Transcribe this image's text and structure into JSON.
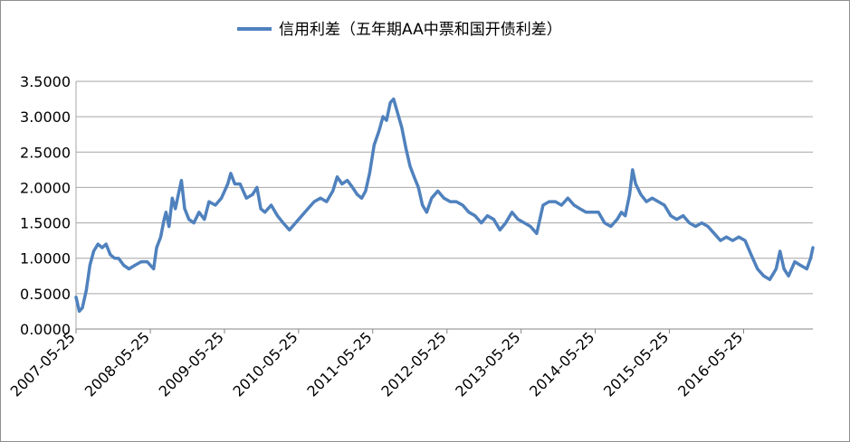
{
  "chart_data": {
    "type": "line",
    "title": "",
    "xlabel": "",
    "ylabel": "",
    "ylim": [
      0,
      3.5
    ],
    "grid": true,
    "legend_position": "top",
    "y_ticks": [
      "0.0000",
      "0.5000",
      "1.0000",
      "1.5000",
      "2.0000",
      "2.5000",
      "3.0000",
      "3.5000"
    ],
    "x_ticks": [
      "2007-05-25",
      "2008-05-25",
      "2009-05-25",
      "2010-05-25",
      "2011-05-25",
      "2012-05-25",
      "2013-05-25",
      "2014-05-25",
      "2015-05-25",
      "2016-05-25"
    ],
    "series": [
      {
        "name": "信用利差（五年期AA中票和国开债利差）",
        "color": "#4f81bd",
        "points": [
          [
            "2007-05-25",
            0.45
          ],
          [
            "2007-06-10",
            0.25
          ],
          [
            "2007-06-25",
            0.3
          ],
          [
            "2007-07-15",
            0.55
          ],
          [
            "2007-08-01",
            0.9
          ],
          [
            "2007-08-20",
            1.1
          ],
          [
            "2007-09-10",
            1.2
          ],
          [
            "2007-10-01",
            1.15
          ],
          [
            "2007-10-20",
            1.2
          ],
          [
            "2007-11-10",
            1.05
          ],
          [
            "2007-12-01",
            1.0
          ],
          [
            "2007-12-20",
            1.0
          ],
          [
            "2008-01-15",
            0.9
          ],
          [
            "2008-02-10",
            0.85
          ],
          [
            "2008-03-10",
            0.9
          ],
          [
            "2008-04-10",
            0.95
          ],
          [
            "2008-05-10",
            0.95
          ],
          [
            "2008-06-10",
            0.85
          ],
          [
            "2008-06-25",
            1.15
          ],
          [
            "2008-07-15",
            1.3
          ],
          [
            "2008-08-01",
            1.55
          ],
          [
            "2008-08-10",
            1.65
          ],
          [
            "2008-08-25",
            1.45
          ],
          [
            "2008-09-10",
            1.85
          ],
          [
            "2008-09-25",
            1.7
          ],
          [
            "2008-10-10",
            1.9
          ],
          [
            "2008-10-25",
            2.1
          ],
          [
            "2008-11-10",
            1.7
          ],
          [
            "2008-12-01",
            1.55
          ],
          [
            "2008-12-25",
            1.5
          ],
          [
            "2009-01-20",
            1.65
          ],
          [
            "2009-02-15",
            1.55
          ],
          [
            "2009-03-10",
            1.8
          ],
          [
            "2009-04-10",
            1.75
          ],
          [
            "2009-05-10",
            1.85
          ],
          [
            "2009-06-10",
            2.05
          ],
          [
            "2009-06-25",
            2.2
          ],
          [
            "2009-07-15",
            2.05
          ],
          [
            "2009-08-10",
            2.05
          ],
          [
            "2009-09-10",
            1.85
          ],
          [
            "2009-10-10",
            1.9
          ],
          [
            "2009-11-01",
            2.0
          ],
          [
            "2009-11-20",
            1.7
          ],
          [
            "2009-12-10",
            1.65
          ],
          [
            "2010-01-10",
            1.75
          ],
          [
            "2010-02-10",
            1.6
          ],
          [
            "2010-03-10",
            1.5
          ],
          [
            "2010-04-10",
            1.4
          ],
          [
            "2010-05-10",
            1.5
          ],
          [
            "2010-06-10",
            1.6
          ],
          [
            "2010-07-10",
            1.7
          ],
          [
            "2010-08-10",
            1.8
          ],
          [
            "2010-09-10",
            1.85
          ],
          [
            "2010-10-10",
            1.8
          ],
          [
            "2010-11-10",
            1.95
          ],
          [
            "2010-12-01",
            2.15
          ],
          [
            "2010-12-25",
            2.05
          ],
          [
            "2011-01-20",
            2.1
          ],
          [
            "2011-02-15",
            2.0
          ],
          [
            "2011-03-10",
            1.9
          ],
          [
            "2011-04-01",
            1.85
          ],
          [
            "2011-04-20",
            1.95
          ],
          [
            "2011-05-10",
            2.2
          ],
          [
            "2011-06-01",
            2.6
          ],
          [
            "2011-06-25",
            2.8
          ],
          [
            "2011-07-15",
            3.0
          ],
          [
            "2011-08-01",
            2.95
          ],
          [
            "2011-08-20",
            3.2
          ],
          [
            "2011-09-05",
            3.25
          ],
          [
            "2011-09-25",
            3.05
          ],
          [
            "2011-10-15",
            2.85
          ],
          [
            "2011-11-05",
            2.55
          ],
          [
            "2011-11-25",
            2.3
          ],
          [
            "2011-12-15",
            2.15
          ],
          [
            "2012-01-05",
            2.0
          ],
          [
            "2012-01-25",
            1.75
          ],
          [
            "2012-02-15",
            1.65
          ],
          [
            "2012-03-10",
            1.85
          ],
          [
            "2012-04-10",
            1.95
          ],
          [
            "2012-05-10",
            1.85
          ],
          [
            "2012-06-10",
            1.8
          ],
          [
            "2012-07-10",
            1.8
          ],
          [
            "2012-08-10",
            1.75
          ],
          [
            "2012-09-10",
            1.65
          ],
          [
            "2012-10-10",
            1.6
          ],
          [
            "2012-11-10",
            1.5
          ],
          [
            "2012-12-10",
            1.6
          ],
          [
            "2013-01-10",
            1.55
          ],
          [
            "2013-02-10",
            1.4
          ],
          [
            "2013-03-10",
            1.5
          ],
          [
            "2013-04-10",
            1.65
          ],
          [
            "2013-05-10",
            1.55
          ],
          [
            "2013-06-10",
            1.5
          ],
          [
            "2013-07-10",
            1.45
          ],
          [
            "2013-08-10",
            1.35
          ],
          [
            "2013-09-10",
            1.75
          ],
          [
            "2013-10-10",
            1.8
          ],
          [
            "2013-11-10",
            1.8
          ],
          [
            "2013-12-10",
            1.75
          ],
          [
            "2014-01-10",
            1.85
          ],
          [
            "2014-02-10",
            1.75
          ],
          [
            "2014-03-10",
            1.7
          ],
          [
            "2014-04-10",
            1.65
          ],
          [
            "2014-05-10",
            1.65
          ],
          [
            "2014-06-10",
            1.65
          ],
          [
            "2014-07-10",
            1.5
          ],
          [
            "2014-08-10",
            1.45
          ],
          [
            "2014-09-10",
            1.55
          ],
          [
            "2014-10-01",
            1.65
          ],
          [
            "2014-10-20",
            1.6
          ],
          [
            "2014-11-10",
            1.9
          ],
          [
            "2014-11-25",
            2.25
          ],
          [
            "2014-12-10",
            2.05
          ],
          [
            "2015-01-05",
            1.9
          ],
          [
            "2015-02-01",
            1.8
          ],
          [
            "2015-03-01",
            1.85
          ],
          [
            "2015-04-01",
            1.8
          ],
          [
            "2015-05-01",
            1.75
          ],
          [
            "2015-06-01",
            1.6
          ],
          [
            "2015-07-01",
            1.55
          ],
          [
            "2015-08-01",
            1.6
          ],
          [
            "2015-09-01",
            1.5
          ],
          [
            "2015-10-01",
            1.45
          ],
          [
            "2015-11-01",
            1.5
          ],
          [
            "2015-12-01",
            1.45
          ],
          [
            "2016-01-01",
            1.35
          ],
          [
            "2016-02-01",
            1.25
          ],
          [
            "2016-03-01",
            1.3
          ],
          [
            "2016-04-01",
            1.25
          ],
          [
            "2016-05-01",
            1.3
          ],
          [
            "2016-06-01",
            1.25
          ],
          [
            "2016-07-01",
            1.05
          ],
          [
            "2016-08-01",
            0.85
          ],
          [
            "2016-09-01",
            0.75
          ],
          [
            "2016-10-01",
            0.7
          ],
          [
            "2016-11-01",
            0.85
          ],
          [
            "2016-11-20",
            1.1
          ],
          [
            "2016-12-10",
            0.85
          ],
          [
            "2017-01-01",
            0.75
          ],
          [
            "2017-02-01",
            0.95
          ],
          [
            "2017-03-01",
            0.9
          ],
          [
            "2017-04-01",
            0.85
          ],
          [
            "2017-04-20",
            1.0
          ],
          [
            "2017-05-01",
            1.15
          ]
        ]
      }
    ]
  }
}
